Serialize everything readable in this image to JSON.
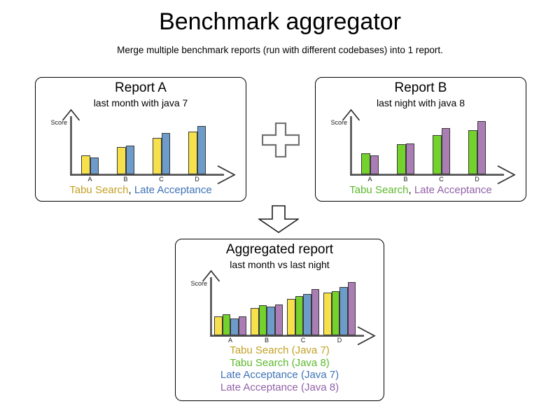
{
  "page": {
    "title": "Benchmark aggregator",
    "subtitle": "Merge multiple benchmark reports (run with different codebases) into 1 report."
  },
  "colors": {
    "bar_tabu_java7": "#F6E14C",
    "bar_tabu_java8": "#73D22C",
    "bar_late_java7": "#6D9CCA",
    "bar_late_java8": "#AA7DB5",
    "text_tabu_java7": "#C3A024",
    "text_tabu_java8": "#5CB82C",
    "text_late_java7": "#3D72B5",
    "text_late_java8": "#9161A8",
    "axis": "#4d4d4d",
    "bar_border": "#3a3a3a"
  },
  "icons": {
    "plus": "plus-icon",
    "down_arrow": "arrow-down-icon"
  },
  "panels": {
    "report_a": {
      "title": "Report A",
      "subtitle": "last month with java 7",
      "axis_label": "Score",
      "legend_separator": ", ",
      "categories": [
        "A",
        "B",
        "C",
        "D"
      ],
      "series": [
        {
          "name": "Tabu Search",
          "bar_color": "#F6E14C",
          "text_color": "#C3A024",
          "values": [
            27,
            39,
            52,
            61
          ]
        },
        {
          "name": "Late Acceptance",
          "bar_color": "#6D9CCA",
          "text_color": "#3D72B5",
          "values": [
            24,
            41,
            59,
            69
          ]
        }
      ]
    },
    "report_b": {
      "title": "Report B",
      "subtitle": "last night with java 8",
      "axis_label": "Score",
      "legend_separator": ", ",
      "categories": [
        "A",
        "B",
        "C",
        "D"
      ],
      "series": [
        {
          "name": "Tabu Search",
          "bar_color": "#73D22C",
          "text_color": "#5CB82C",
          "values": [
            30,
            43,
            56,
            63
          ]
        },
        {
          "name": "Late Acceptance",
          "bar_color": "#AA7DB5",
          "text_color": "#9161A8",
          "values": [
            27,
            44,
            66,
            76
          ]
        }
      ]
    },
    "aggregated": {
      "title": "Aggregated report",
      "subtitle": "last month vs last night",
      "axis_label": "Score",
      "legend_separator": ", ",
      "categories": [
        "A",
        "B",
        "C",
        "D"
      ],
      "series": [
        {
          "name": "Tabu Search (Java 7)",
          "bar_color": "#F6E14C",
          "text_color": "#C3A024",
          "values": [
            27,
            39,
            52,
            61
          ]
        },
        {
          "name": "Tabu Search (Java 8)",
          "bar_color": "#73D22C",
          "text_color": "#5CB82C",
          "values": [
            30,
            43,
            56,
            63
          ]
        },
        {
          "name": "Late Acceptance (Java 7)",
          "bar_color": "#6D9CCA",
          "text_color": "#3D72B5",
          "values": [
            24,
            41,
            59,
            69
          ]
        },
        {
          "name": "Late Acceptance (Java 8)",
          "bar_color": "#AA7DB5",
          "text_color": "#9161A8",
          "values": [
            27,
            44,
            66,
            76
          ]
        }
      ]
    }
  },
  "chart_data": [
    {
      "type": "bar",
      "title": "Report A",
      "subtitle": "last month with java 7",
      "xlabel": "",
      "ylabel": "Score",
      "ylim": [
        0,
        100
      ],
      "grid": false,
      "legend_position": "bottom",
      "categories": [
        "A",
        "B",
        "C",
        "D"
      ],
      "series": [
        {
          "name": "Tabu Search",
          "values": [
            27,
            39,
            52,
            61
          ]
        },
        {
          "name": "Late Acceptance",
          "values": [
            24,
            41,
            59,
            69
          ]
        }
      ]
    },
    {
      "type": "bar",
      "title": "Report B",
      "subtitle": "last night with java 8",
      "xlabel": "",
      "ylabel": "Score",
      "ylim": [
        0,
        100
      ],
      "grid": false,
      "legend_position": "bottom",
      "categories": [
        "A",
        "B",
        "C",
        "D"
      ],
      "series": [
        {
          "name": "Tabu Search",
          "values": [
            30,
            43,
            56,
            63
          ]
        },
        {
          "name": "Late Acceptance",
          "values": [
            27,
            44,
            66,
            76
          ]
        }
      ]
    },
    {
      "type": "bar",
      "title": "Aggregated report",
      "subtitle": "last month vs last night",
      "xlabel": "",
      "ylabel": "Score",
      "ylim": [
        0,
        100
      ],
      "grid": false,
      "legend_position": "bottom",
      "categories": [
        "A",
        "B",
        "C",
        "D"
      ],
      "series": [
        {
          "name": "Tabu Search (Java 7)",
          "values": [
            27,
            39,
            52,
            61
          ]
        },
        {
          "name": "Tabu Search (Java 8)",
          "values": [
            30,
            43,
            56,
            63
          ]
        },
        {
          "name": "Late Acceptance (Java 7)",
          "values": [
            24,
            41,
            59,
            69
          ]
        },
        {
          "name": "Late Acceptance (Java 8)",
          "values": [
            27,
            44,
            66,
            76
          ]
        }
      ]
    }
  ]
}
